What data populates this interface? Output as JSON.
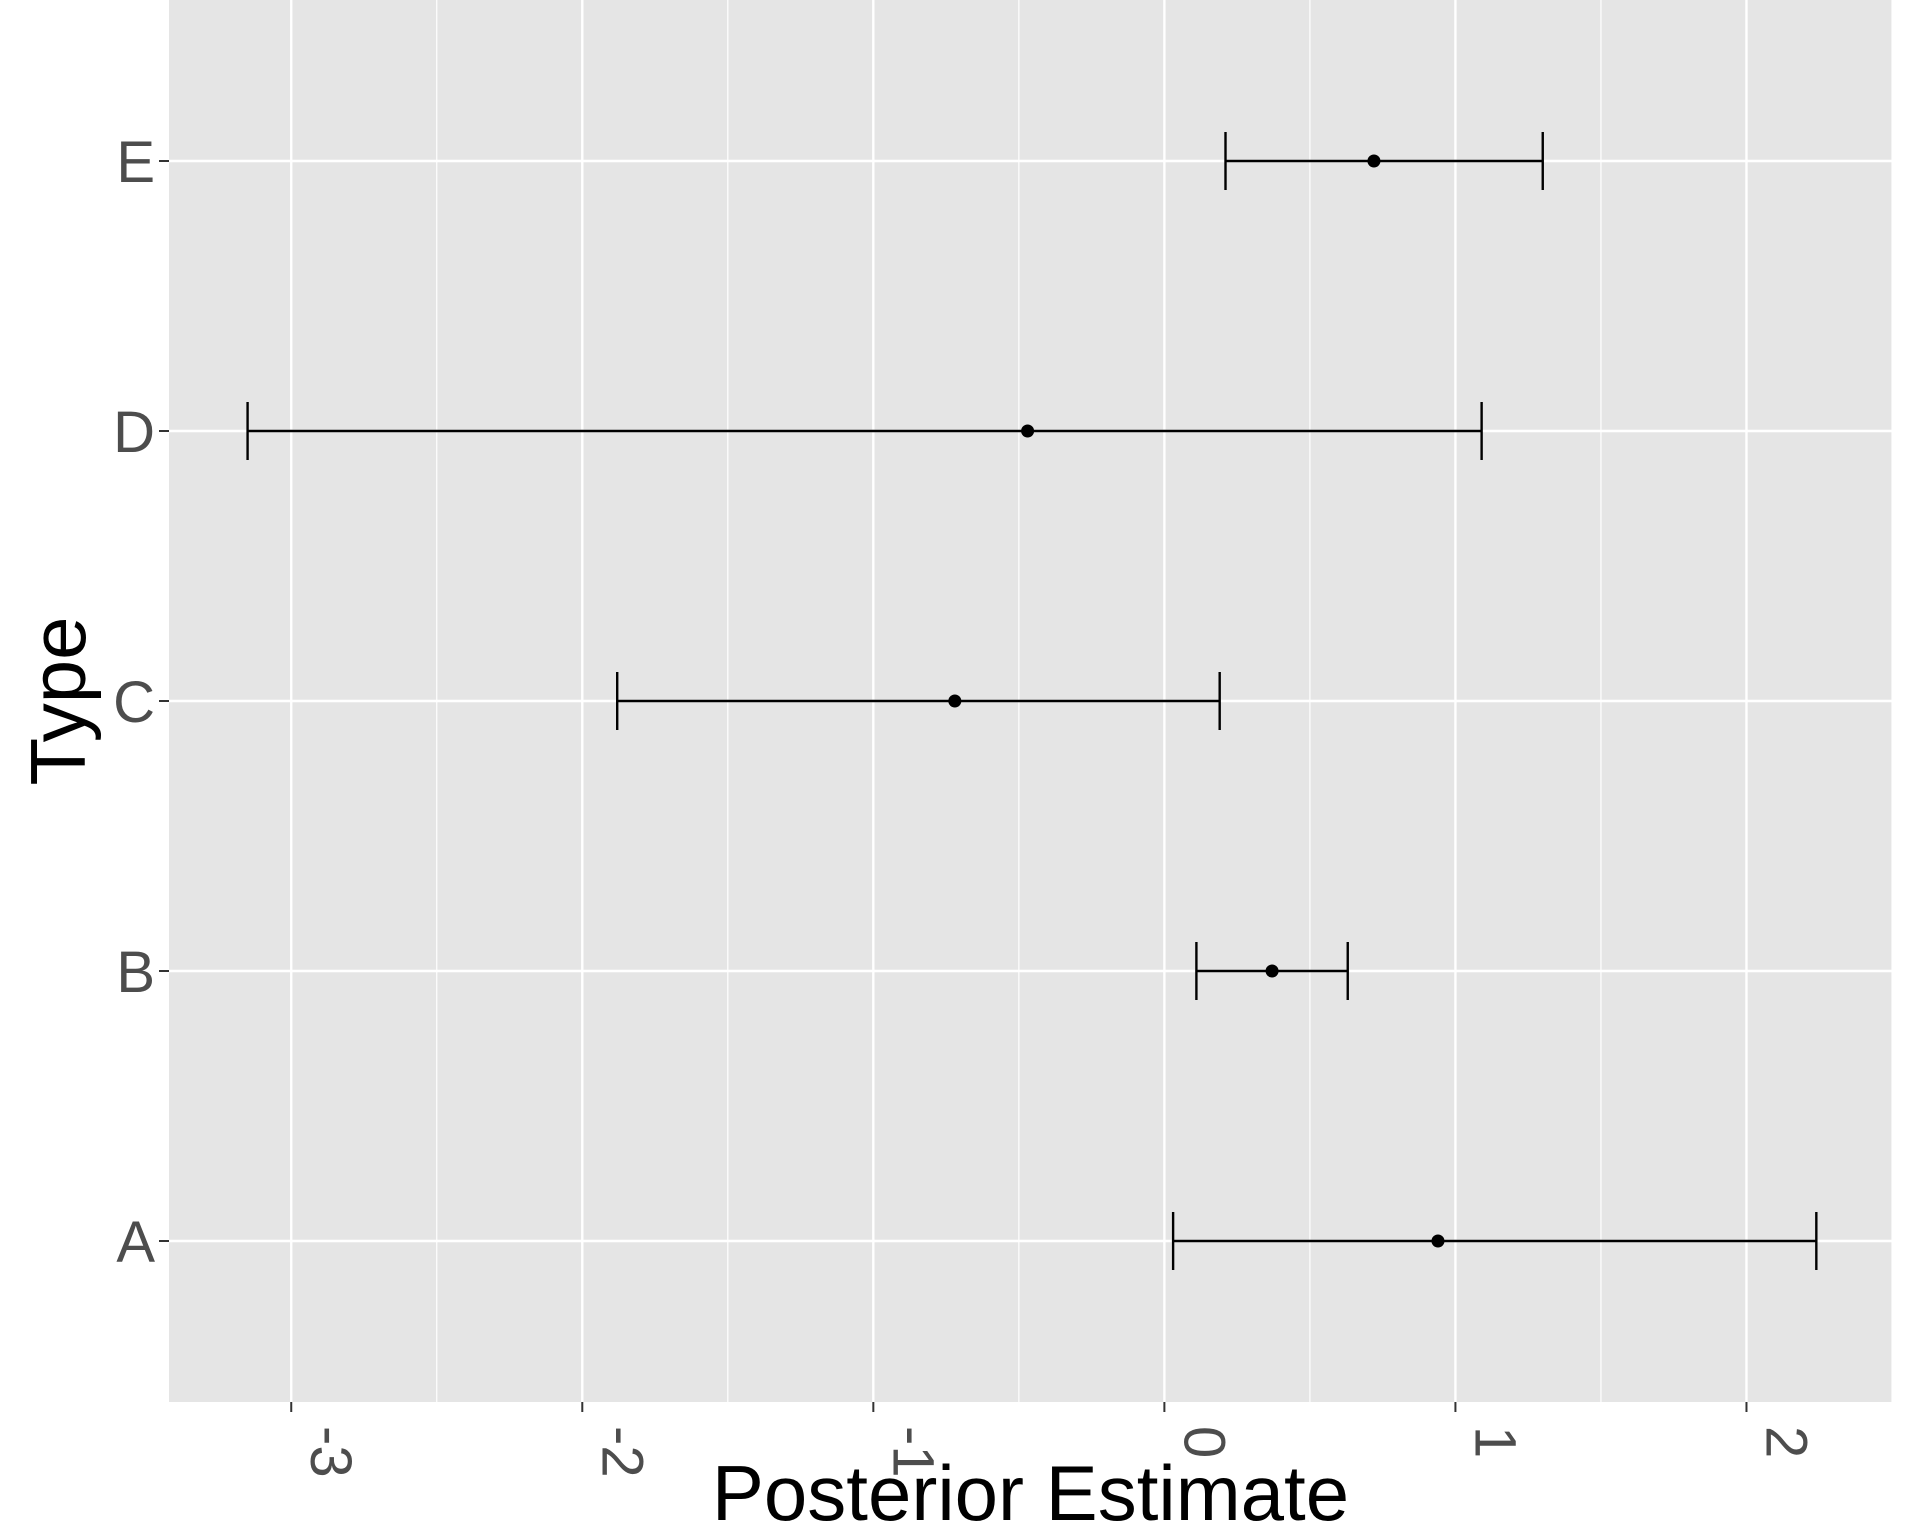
{
  "chart_data": {
    "type": "errorbar",
    "orientation": "horizontal",
    "xlabel": "Posterior Estimate",
    "ylabel": "Type",
    "xlim": [
      -3.42,
      2.5
    ],
    "x_ticks": [
      -3,
      -2,
      -1,
      0,
      1,
      2
    ],
    "categories": [
      "A",
      "B",
      "C",
      "D",
      "E"
    ],
    "points": [
      {
        "category": "A",
        "estimate": 0.94,
        "lower": 0.03,
        "upper": 2.24
      },
      {
        "category": "B",
        "estimate": 0.37,
        "lower": 0.11,
        "upper": 0.63
      },
      {
        "category": "C",
        "estimate": -0.72,
        "lower": -1.88,
        "upper": 0.19
      },
      {
        "category": "D",
        "estimate": -0.47,
        "lower": -3.15,
        "upper": 1.09
      },
      {
        "category": "E",
        "estimate": 0.72,
        "lower": 0.21,
        "upper": 1.3
      }
    ],
    "grid": true,
    "panel_background": "#e5e5e5",
    "grid_color": "#ffffff",
    "mark_color": "#000000"
  }
}
